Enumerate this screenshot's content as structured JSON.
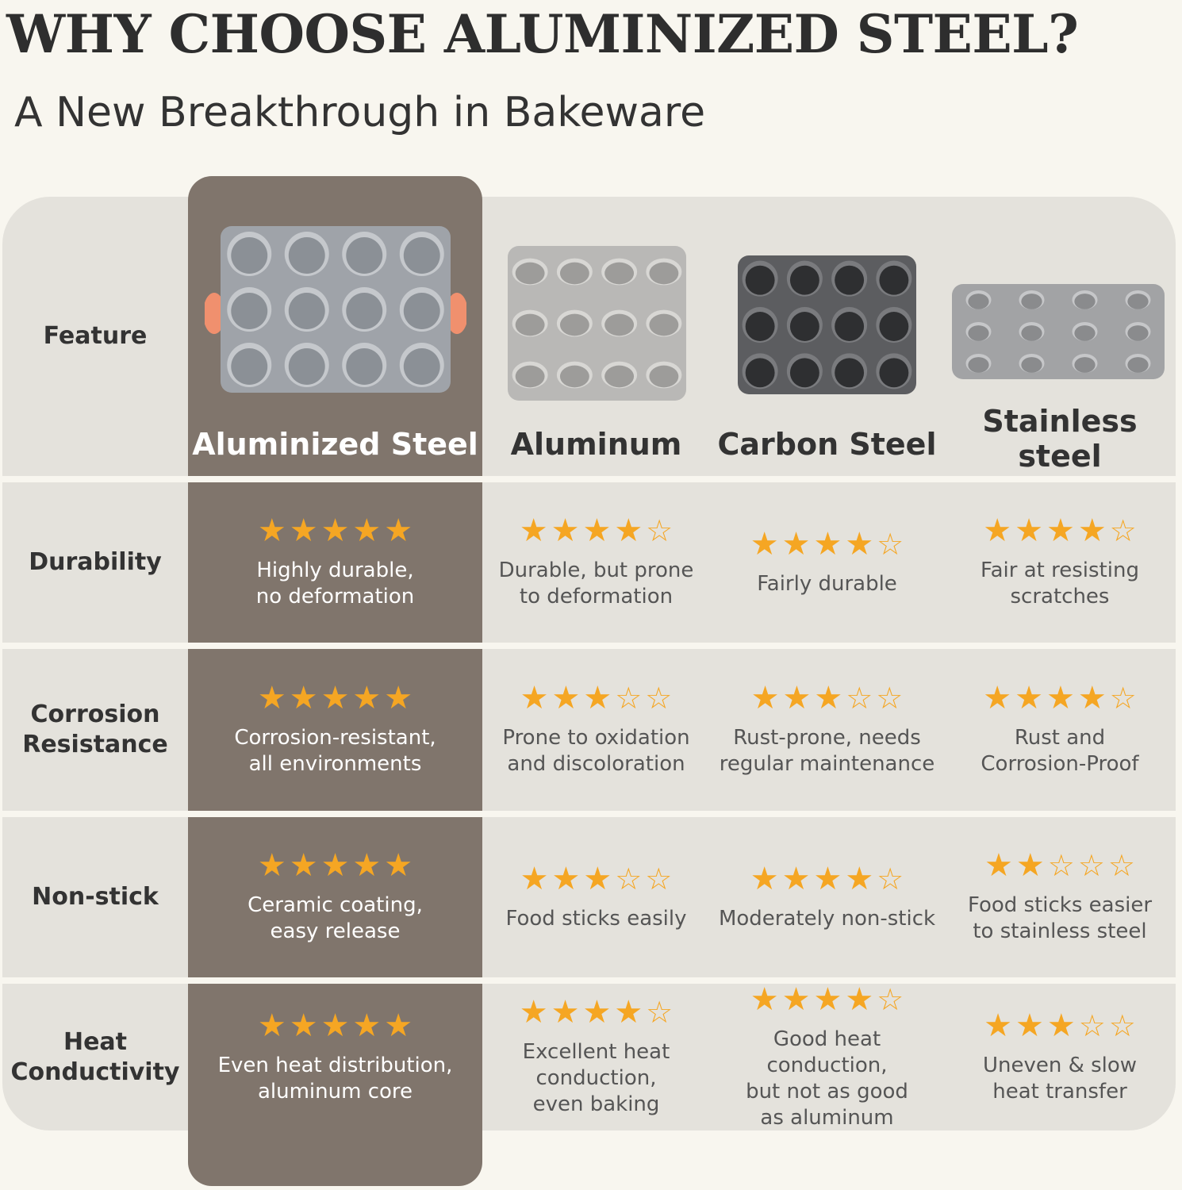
{
  "title": "WHY CHOOSE ALUMINIZED STEEL?",
  "subtitle": "A New Breakthrough in Bakeware",
  "colors": {
    "background": "#f8f6ef",
    "panel": "#e4e2dc",
    "featured": "#80756c",
    "star": "#f5a623"
  },
  "feature_header": "Feature",
  "columns": [
    {
      "name": "Aluminized Steel",
      "image": "muffin-pan-gray-orange-handles"
    },
    {
      "name": "Aluminum",
      "image": "muffin-pan-aluminum"
    },
    {
      "name": "Carbon Steel",
      "image": "muffin-pan-dark"
    },
    {
      "name": "Stainless\nsteel",
      "image": "muffin-pan-stainless"
    }
  ],
  "rows": [
    {
      "feature": "Durability",
      "cells": [
        {
          "rating": 5,
          "text": "Highly durable,\nno deformation"
        },
        {
          "rating": 4,
          "text": "Durable, but prone\nto deformation"
        },
        {
          "rating": 4,
          "text": "Fairly durable"
        },
        {
          "rating": 4,
          "text": "Fair at resisting\nscratches"
        }
      ]
    },
    {
      "feature": "Corrosion\nResistance",
      "cells": [
        {
          "rating": 5,
          "text": "Corrosion-resistant,\nall environments"
        },
        {
          "rating": 3,
          "text": "Prone to oxidation\nand discoloration"
        },
        {
          "rating": 3,
          "text": "Rust-prone, needs\nregular maintenance"
        },
        {
          "rating": 4,
          "text": "Rust and\nCorrosion-Proof"
        }
      ]
    },
    {
      "feature": "Non-stick",
      "cells": [
        {
          "rating": 5,
          "text": "Ceramic coating,\neasy release"
        },
        {
          "rating": 3,
          "text": "Food sticks easily"
        },
        {
          "rating": 4,
          "text": "Moderately non-stick"
        },
        {
          "rating": 2,
          "text": "Food sticks easier\nto stainless steel"
        }
      ]
    },
    {
      "feature": "Heat\nConductivity",
      "cells": [
        {
          "rating": 5,
          "text": "Even heat distribution,\naluminum core"
        },
        {
          "rating": 4,
          "text": "Excellent heat\nconduction,\neven baking"
        },
        {
          "rating": 4,
          "text": "Good heat conduction,\nbut not as good\nas aluminum"
        },
        {
          "rating": 3,
          "text": "Uneven & slow\nheat transfer"
        }
      ]
    }
  ]
}
